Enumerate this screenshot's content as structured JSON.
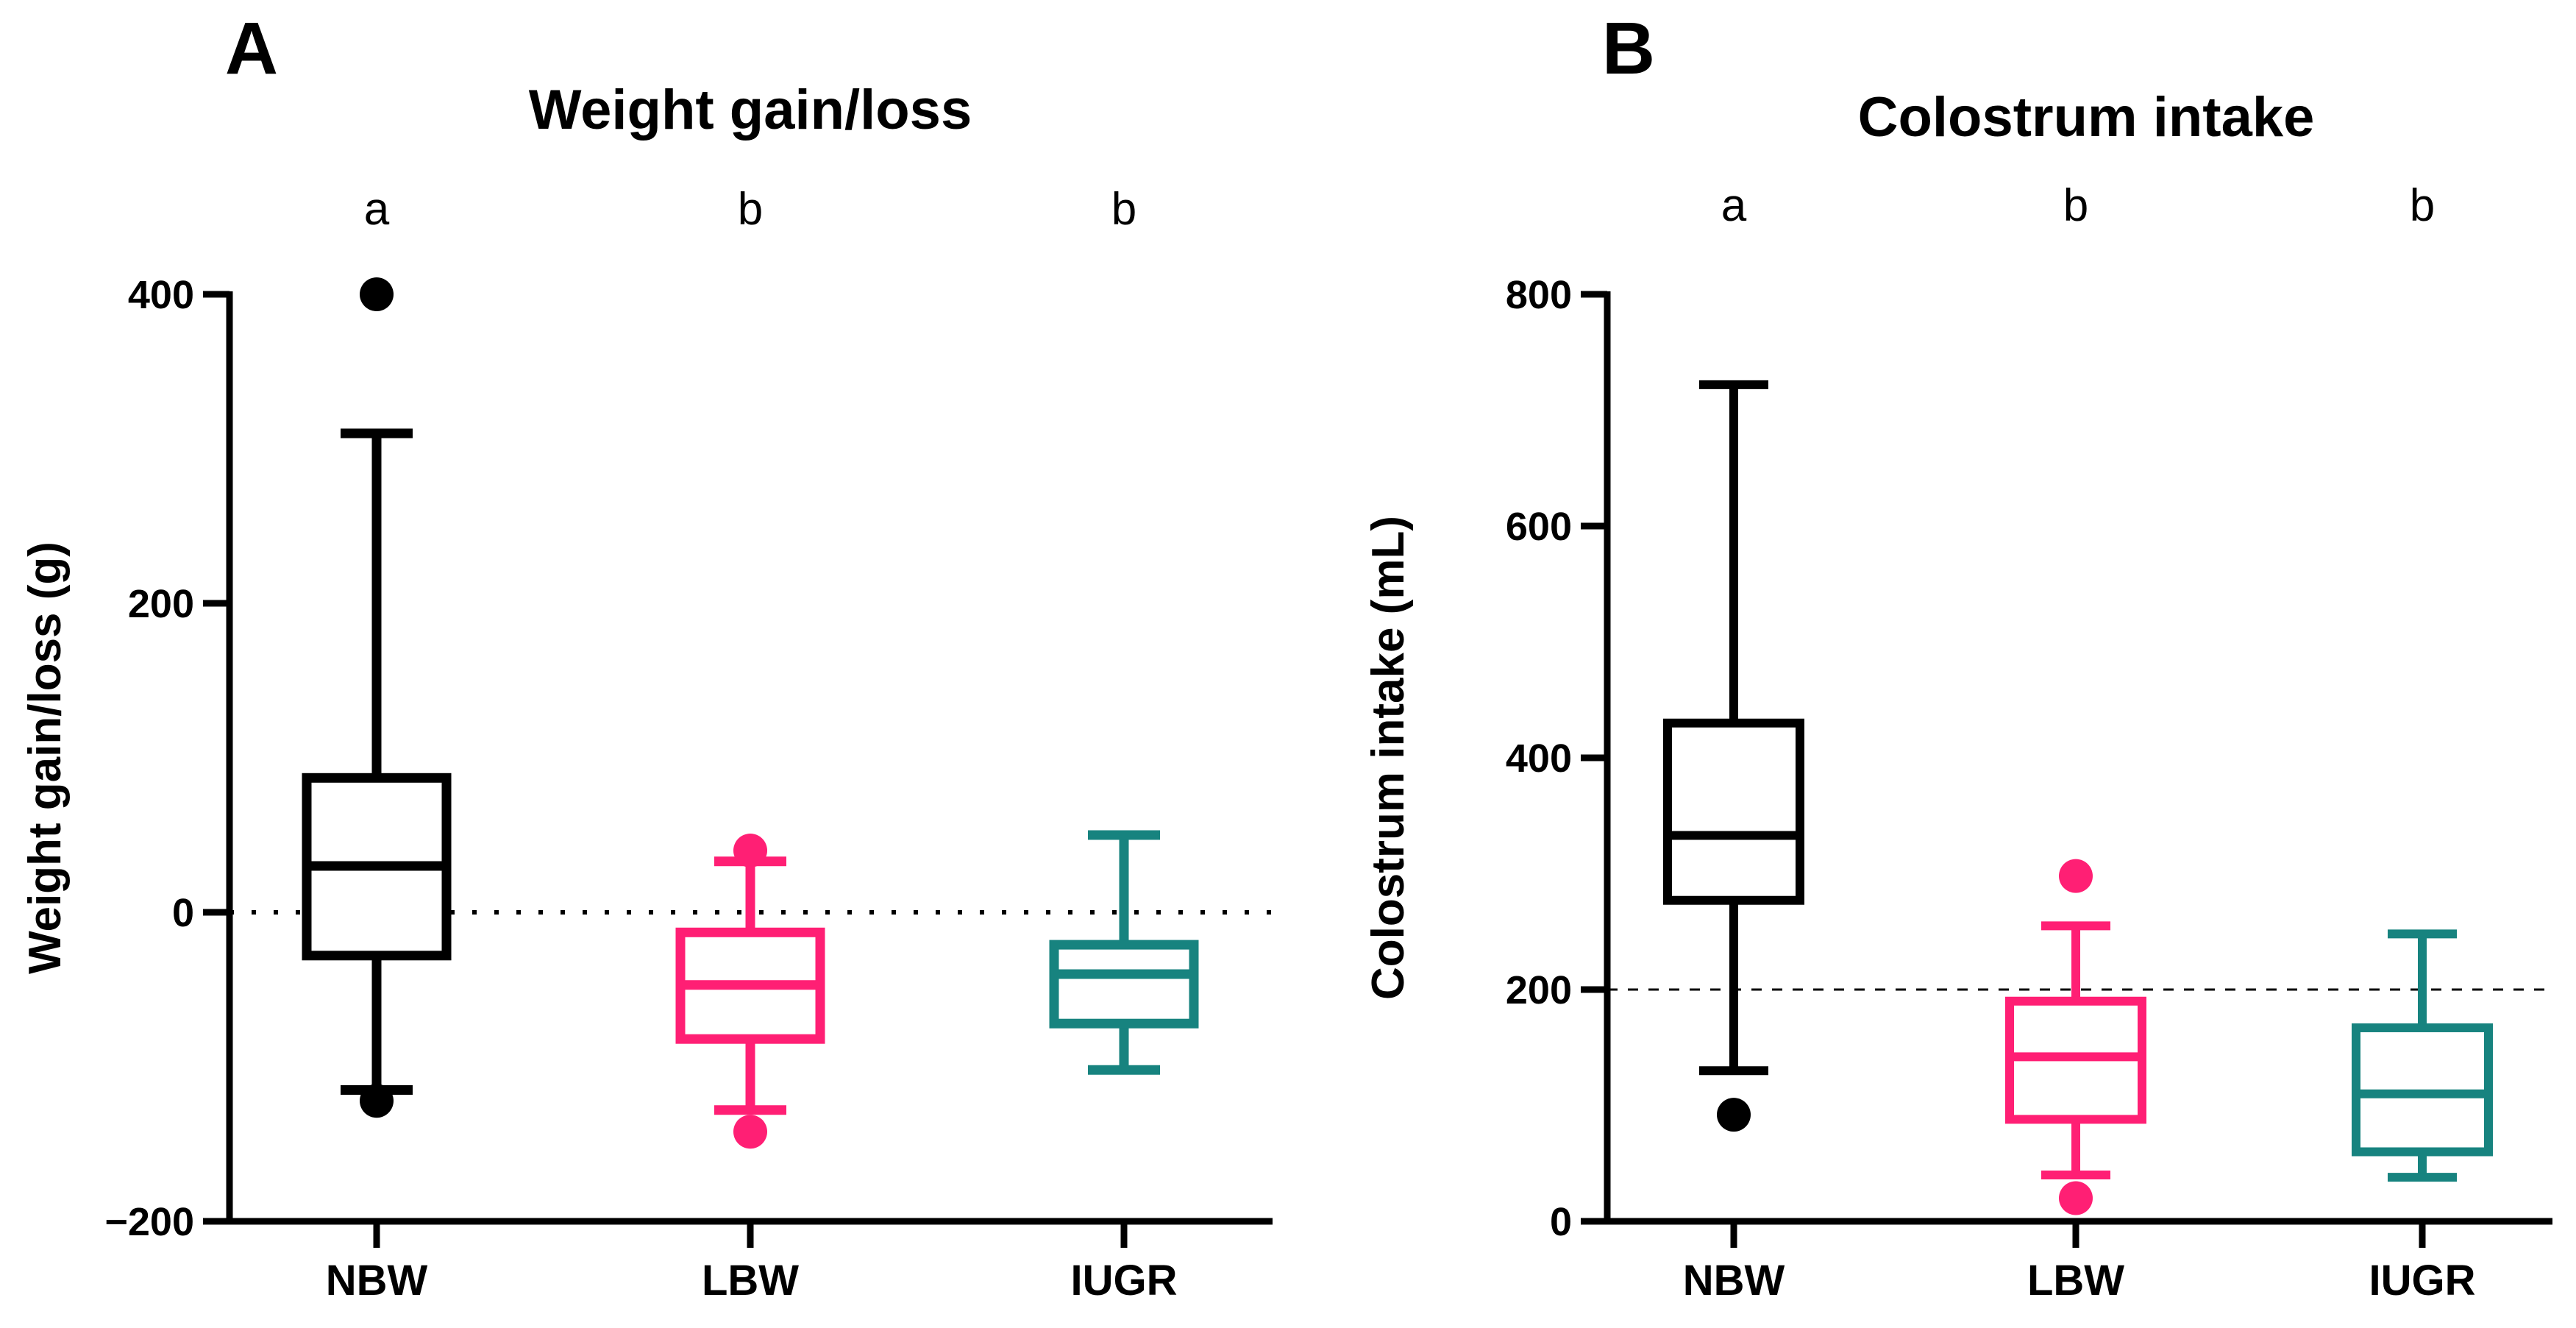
{
  "chart_data": [
    {
      "type": "boxplot",
      "panel_label": "A",
      "title": "Weight gain/loss",
      "ylabel": "Weight gain/loss (g)",
      "xlabel": "",
      "ylim": [
        -200,
        400
      ],
      "yticks": [
        -200,
        0,
        200,
        400
      ],
      "ytick_labels": [
        "−200",
        "0",
        "200",
        "400"
      ],
      "reference_line": {
        "y": 0,
        "style": "dotted"
      },
      "categories": [
        "NBW",
        "LBW",
        "IUGR"
      ],
      "significance": [
        "a",
        "b",
        "b"
      ],
      "colors": [
        "#000000",
        "#ff1f74",
        "#17837f"
      ],
      "boxes": [
        {
          "name": "NBW",
          "whisker_low": -115,
          "q1": -28,
          "median": 30,
          "q3": 87,
          "whisker_high": 310,
          "outliers": [
            400,
            -122
          ]
        },
        {
          "name": "LBW",
          "whisker_low": -128,
          "q1": -82,
          "median": -47,
          "q3": -13,
          "whisker_high": 33,
          "outliers": [
            40,
            -142
          ]
        },
        {
          "name": "IUGR",
          "whisker_low": -102,
          "q1": -72,
          "median": -40,
          "q3": -21,
          "whisker_high": 50,
          "outliers": []
        }
      ]
    },
    {
      "type": "boxplot",
      "panel_label": "B",
      "title": "Colostrum intake",
      "ylabel": "Colostrum intake (mL)",
      "xlabel": "",
      "ylim": [
        0,
        800
      ],
      "yticks": [
        0,
        200,
        400,
        600,
        800
      ],
      "ytick_labels": [
        "0",
        "200",
        "400",
        "600",
        "800"
      ],
      "reference_line": {
        "y": 200,
        "style": "dashed"
      },
      "categories": [
        "NBW",
        "LBW",
        "IUGR"
      ],
      "significance": [
        "a",
        "b",
        "b"
      ],
      "colors": [
        "#000000",
        "#ff1f74",
        "#17837f"
      ],
      "boxes": [
        {
          "name": "NBW",
          "whisker_low": 130,
          "q1": 277,
          "median": 333,
          "q3": 430,
          "whisker_high": 722,
          "outliers": [
            92
          ]
        },
        {
          "name": "LBW",
          "whisker_low": 40,
          "q1": 88,
          "median": 142,
          "q3": 190,
          "whisker_high": 255,
          "outliers": [
            298,
            20
          ]
        },
        {
          "name": "IUGR",
          "whisker_low": 38,
          "q1": 60,
          "median": 110,
          "q3": 167,
          "whisker_high": 248,
          "outliers": []
        }
      ]
    }
  ]
}
